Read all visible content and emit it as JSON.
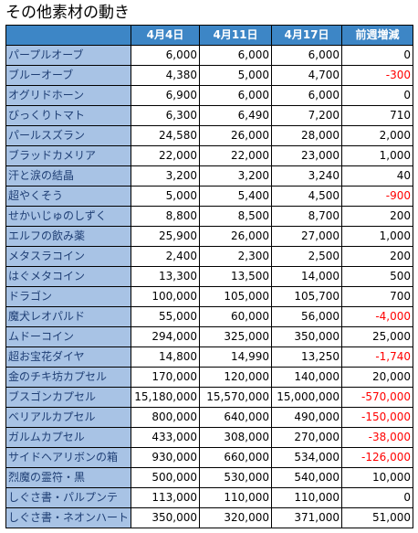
{
  "title": "その他素材の動き",
  "columns": [
    "",
    "4月4日",
    "4月11日",
    "4月17日",
    "前週増減"
  ],
  "rows": [
    {
      "name": "パープルオーブ",
      "d1": "6,000",
      "d2": "6,000",
      "d3": "6,000",
      "change": "0"
    },
    {
      "name": "ブルーオーブ",
      "d1": "4,380",
      "d2": "5,000",
      "d3": "4,700",
      "change": "-300"
    },
    {
      "name": "オグリドホーン",
      "d1": "6,900",
      "d2": "6,000",
      "d3": "6,000",
      "change": "0"
    },
    {
      "name": "びっくりトマト",
      "d1": "6,300",
      "d2": "6,490",
      "d3": "7,200",
      "change": "710"
    },
    {
      "name": "パールスズラン",
      "d1": "24,580",
      "d2": "26,000",
      "d3": "28,000",
      "change": "2,000"
    },
    {
      "name": "ブラッドカメリア",
      "d1": "22,000",
      "d2": "22,000",
      "d3": "23,000",
      "change": "1,000"
    },
    {
      "name": "汗と涙の結晶",
      "d1": "3,200",
      "d2": "3,200",
      "d3": "3,240",
      "change": "40"
    },
    {
      "name": "超やくそう",
      "d1": "5,000",
      "d2": "5,400",
      "d3": "4,500",
      "change": "-900"
    },
    {
      "name": "せかいじゅのしずく",
      "d1": "8,800",
      "d2": "8,500",
      "d3": "8,700",
      "change": "200"
    },
    {
      "name": "エルフの飲み薬",
      "d1": "25,900",
      "d2": "26,000",
      "d3": "27,000",
      "change": "1,000"
    },
    {
      "name": "メタスラコイン",
      "d1": "2,400",
      "d2": "2,300",
      "d3": "2,500",
      "change": "200"
    },
    {
      "name": "はぐメタコイン",
      "d1": "13,300",
      "d2": "13,500",
      "d3": "14,000",
      "change": "500"
    },
    {
      "name": "ドラゴン",
      "d1": "100,000",
      "d2": "105,000",
      "d3": "105,700",
      "change": "700"
    },
    {
      "name": "魔犬レオパルド",
      "d1": "55,000",
      "d2": "60,000",
      "d3": "56,000",
      "change": "-4,000"
    },
    {
      "name": "ムドーコイン",
      "d1": "294,000",
      "d2": "325,000",
      "d3": "350,000",
      "change": "25,000"
    },
    {
      "name": "超お宝花ダイヤ",
      "d1": "14,800",
      "d2": "14,990",
      "d3": "13,250",
      "change": "-1,740"
    },
    {
      "name": "金のチキ坊カプセル",
      "d1": "170,000",
      "d2": "120,000",
      "d3": "140,000",
      "change": "20,000"
    },
    {
      "name": "ブスゴンカプセル",
      "d1": "15,180,000",
      "d2": "15,570,000",
      "d3": "15,000,000",
      "change": "-570,000"
    },
    {
      "name": "ベリアルカプセル",
      "d1": "800,000",
      "d2": "640,000",
      "d3": "490,000",
      "change": "-150,000"
    },
    {
      "name": "ガルムカプセル",
      "d1": "433,000",
      "d2": "308,000",
      "d3": "270,000",
      "change": "-38,000"
    },
    {
      "name": "サイドヘアリボンの箱",
      "d1": "930,000",
      "d2": "660,000",
      "d3": "534,000",
      "change": "-126,000"
    },
    {
      "name": "烈魔の霊符・黒",
      "d1": "500,000",
      "d2": "530,000",
      "d3": "540,000",
      "change": "10,000"
    },
    {
      "name": "しぐさ書・パルプンテ",
      "d1": "113,000",
      "d2": "110,000",
      "d3": "110,000",
      "change": "0"
    },
    {
      "name": "しぐさ書・ネオンハート",
      "d1": "350,000",
      "d2": "320,000",
      "d3": "371,000",
      "change": "51,000"
    }
  ]
}
